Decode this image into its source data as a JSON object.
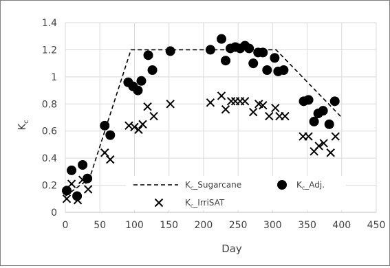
{
  "chart_data": {
    "type": "scatter",
    "xlabel": "Day",
    "ylabel": "K",
    "ylabel_sub": "c",
    "xlim": [
      0,
      450
    ],
    "ylim": [
      0,
      1.4
    ],
    "x_ticks": [
      0,
      50,
      100,
      150,
      200,
      250,
      300,
      350,
      400,
      450
    ],
    "y_ticks": [
      0,
      0.2,
      0.4,
      0.6,
      0.8,
      1,
      1.2,
      1.4
    ],
    "y_tick_labels": [
      "0",
      "0.2",
      "0.4",
      "0.6",
      "0.8",
      "1",
      "1.2",
      "1.4"
    ],
    "grid": "vertical and horizontal major gridlines",
    "legend_position": "lower-center",
    "series": [
      {
        "name": "K_c_Sugarcane",
        "legend_main": "K",
        "legend_sub": "c",
        "legend_rest": "_Sugarcane",
        "style": "dashed-line",
        "color": "#000000",
        "points": [
          [
            0,
            0.12
          ],
          [
            35,
            0.25
          ],
          [
            95,
            1.2
          ],
          [
            305,
            1.2
          ],
          [
            400,
            0.7
          ]
        ]
      },
      {
        "name": "K_c_Adj.",
        "legend_main": "K",
        "legend_sub": "c",
        "legend_rest": "_Adj.",
        "style": "filled-circle",
        "color": "#000000",
        "points": [
          [
            2,
            0.16
          ],
          [
            9,
            0.31
          ],
          [
            17,
            0.12
          ],
          [
            25,
            0.35
          ],
          [
            32,
            0.25
          ],
          [
            57,
            0.64
          ],
          [
            65,
            0.57
          ],
          [
            91,
            0.96
          ],
          [
            98,
            0.93
          ],
          [
            105,
            0.9
          ],
          [
            110,
            0.97
          ],
          [
            120,
            1.16
          ],
          [
            126,
            1.05
          ],
          [
            152,
            1.19
          ],
          [
            210,
            1.2
          ],
          [
            226,
            1.28
          ],
          [
            232,
            1.12
          ],
          [
            239,
            1.21
          ],
          [
            246,
            1.22
          ],
          [
            253,
            1.21
          ],
          [
            260,
            1.23
          ],
          [
            266,
            1.21
          ],
          [
            272,
            1.1
          ],
          [
            279,
            1.18
          ],
          [
            286,
            1.18
          ],
          [
            292,
            1.05
          ],
          [
            303,
            1.14
          ],
          [
            308,
            1.04
          ],
          [
            316,
            1.05
          ],
          [
            345,
            0.82
          ],
          [
            352,
            0.83
          ],
          [
            360,
            0.67
          ],
          [
            366,
            0.73
          ],
          [
            373,
            0.75
          ],
          [
            382,
            0.65
          ],
          [
            390,
            0.82
          ]
        ]
      },
      {
        "name": "K_c_IrriSAT",
        "legend_main": "K",
        "legend_sub": "c",
        "legend_rest": "_IrriSAT",
        "style": "x-marker",
        "color": "#000000",
        "points": [
          [
            2,
            0.1
          ],
          [
            9,
            0.21
          ],
          [
            18,
            0.09
          ],
          [
            25,
            0.24
          ],
          [
            33,
            0.17
          ],
          [
            57,
            0.44
          ],
          [
            65,
            0.39
          ],
          [
            92,
            0.64
          ],
          [
            100,
            0.63
          ],
          [
            106,
            0.61
          ],
          [
            112,
            0.65
          ],
          [
            119,
            0.78
          ],
          [
            128,
            0.71
          ],
          [
            152,
            0.8
          ],
          [
            210,
            0.81
          ],
          [
            226,
            0.86
          ],
          [
            232,
            0.76
          ],
          [
            240,
            0.82
          ],
          [
            246,
            0.82
          ],
          [
            253,
            0.82
          ],
          [
            260,
            0.82
          ],
          [
            272,
            0.74
          ],
          [
            280,
            0.8
          ],
          [
            286,
            0.79
          ],
          [
            295,
            0.71
          ],
          [
            304,
            0.77
          ],
          [
            310,
            0.71
          ],
          [
            318,
            0.71
          ],
          [
            344,
            0.56
          ],
          [
            352,
            0.56
          ],
          [
            360,
            0.45
          ],
          [
            367,
            0.49
          ],
          [
            374,
            0.51
          ],
          [
            384,
            0.44
          ],
          [
            391,
            0.56
          ]
        ]
      }
    ]
  }
}
